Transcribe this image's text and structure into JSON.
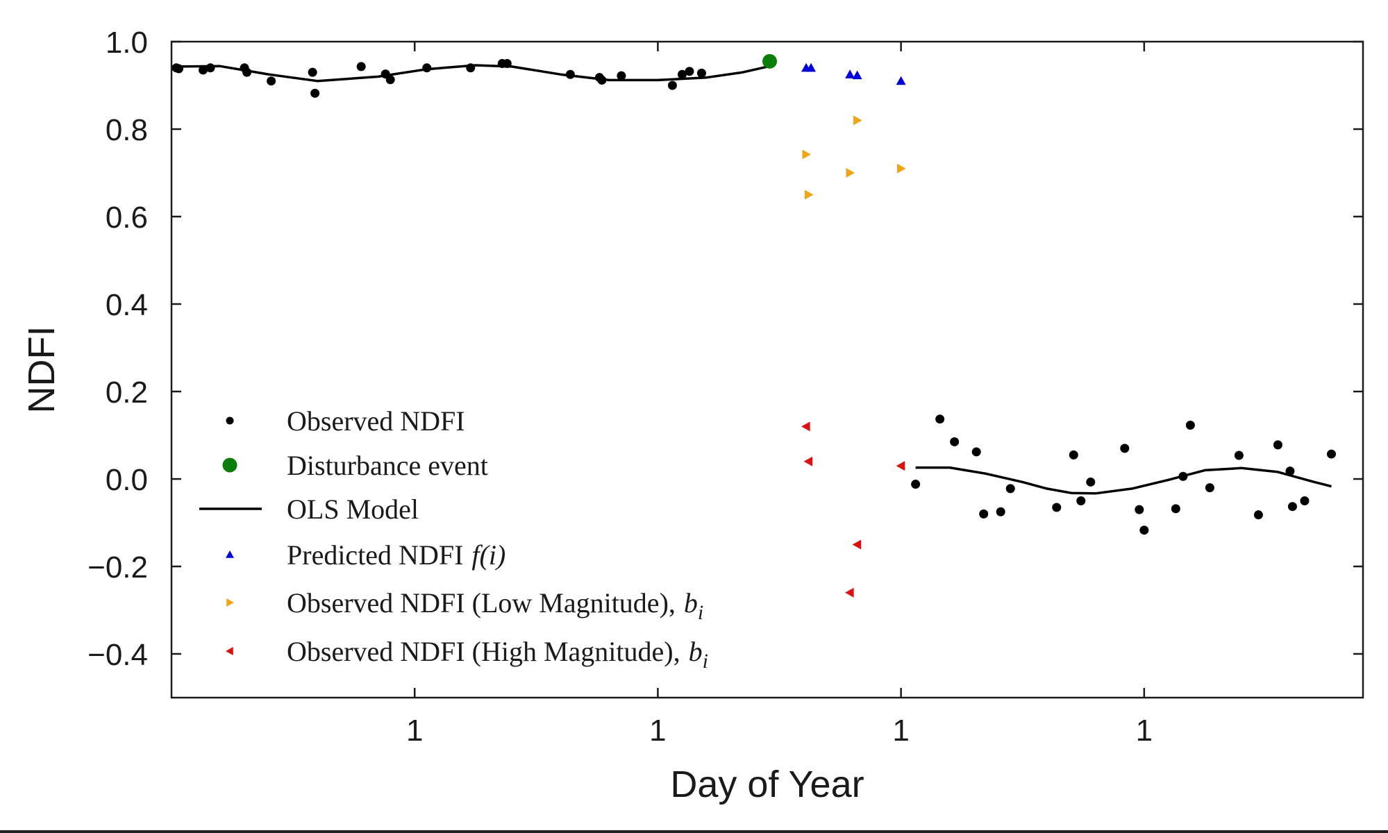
{
  "chart_data": {
    "type": "scatter",
    "xlabel": "Day of Year",
    "ylabel": "NDFI",
    "xlim": [
      0,
      4.9
    ],
    "ylim": [
      -0.5,
      1.0
    ],
    "grid": false,
    "legend_position": "lower-left",
    "x_ticks": [
      {
        "value": 1,
        "label": "1"
      },
      {
        "value": 2,
        "label": "1"
      },
      {
        "value": 3,
        "label": "1"
      },
      {
        "value": 4,
        "label": "1"
      }
    ],
    "y_ticks": [
      {
        "value": 1.0,
        "label": "1.0"
      },
      {
        "value": 0.8,
        "label": "0.8"
      },
      {
        "value": 0.6,
        "label": "0.6"
      },
      {
        "value": 0.4,
        "label": "0.4"
      },
      {
        "value": 0.2,
        "label": "0.2"
      },
      {
        "value": 0.0,
        "label": "0.0"
      },
      {
        "value": -0.2,
        "label": "−0.2"
      },
      {
        "value": -0.4,
        "label": "−0.4"
      }
    ],
    "series": [
      {
        "name": "Observed NDFI",
        "marker": "dot",
        "color": "#000000",
        "points": [
          [
            0.02,
            0.94
          ],
          [
            0.03,
            0.938
          ],
          [
            0.13,
            0.935
          ],
          [
            0.16,
            0.94
          ],
          [
            0.3,
            0.94
          ],
          [
            0.31,
            0.93
          ],
          [
            0.41,
            0.91
          ],
          [
            0.58,
            0.93
          ],
          [
            0.59,
            0.882
          ],
          [
            0.78,
            0.943
          ],
          [
            0.88,
            0.926
          ],
          [
            0.9,
            0.913
          ],
          [
            1.05,
            0.94
          ],
          [
            1.23,
            0.94
          ],
          [
            1.36,
            0.95
          ],
          [
            1.38,
            0.95
          ],
          [
            1.64,
            0.925
          ],
          [
            1.76,
            0.918
          ],
          [
            1.77,
            0.912
          ],
          [
            1.85,
            0.922
          ],
          [
            2.06,
            0.9
          ],
          [
            2.1,
            0.925
          ],
          [
            2.13,
            0.932
          ],
          [
            2.18,
            0.928
          ],
          [
            3.06,
            -0.012
          ],
          [
            3.16,
            0.137
          ],
          [
            3.22,
            0.085
          ],
          [
            3.31,
            0.062
          ],
          [
            3.34,
            -0.08
          ],
          [
            3.41,
            -0.075
          ],
          [
            3.45,
            -0.022
          ],
          [
            3.64,
            -0.065
          ],
          [
            3.71,
            0.055
          ],
          [
            3.74,
            -0.05
          ],
          [
            3.78,
            -0.007
          ],
          [
            3.92,
            0.07
          ],
          [
            3.98,
            -0.07
          ],
          [
            4.0,
            -0.117
          ],
          [
            4.13,
            -0.068
          ],
          [
            4.16,
            0.006
          ],
          [
            4.19,
            0.123
          ],
          [
            4.27,
            -0.02
          ],
          [
            4.39,
            0.054
          ],
          [
            4.47,
            -0.082
          ],
          [
            4.55,
            0.078
          ],
          [
            4.6,
            0.018
          ],
          [
            4.61,
            -0.063
          ],
          [
            4.66,
            -0.05
          ],
          [
            4.77,
            0.057
          ]
        ]
      },
      {
        "name": "Disturbance event",
        "marker": "big-dot",
        "color": "#0b7d0b",
        "points": [
          [
            2.46,
            0.955
          ]
        ]
      },
      {
        "name": "OLS Model",
        "marker": "line",
        "color": "#000000",
        "segments": [
          [
            [
              0.0,
              0.943
            ],
            [
              0.2,
              0.944
            ],
            [
              0.4,
              0.925
            ],
            [
              0.6,
              0.91
            ],
            [
              0.85,
              0.92
            ],
            [
              1.05,
              0.937
            ],
            [
              1.25,
              0.946
            ],
            [
              1.4,
              0.943
            ],
            [
              1.6,
              0.925
            ],
            [
              1.8,
              0.912
            ],
            [
              2.0,
              0.912
            ],
            [
              2.2,
              0.918
            ],
            [
              2.35,
              0.93
            ],
            [
              2.46,
              0.944
            ]
          ],
          [
            [
              3.06,
              0.026
            ],
            [
              3.2,
              0.026
            ],
            [
              3.35,
              0.012
            ],
            [
              3.5,
              -0.007
            ],
            [
              3.6,
              -0.022
            ],
            [
              3.7,
              -0.032
            ],
            [
              3.8,
              -0.033
            ],
            [
              3.95,
              -0.022
            ],
            [
              4.1,
              -0.002
            ],
            [
              4.25,
              0.02
            ],
            [
              4.4,
              0.025
            ],
            [
              4.55,
              0.016
            ],
            [
              4.7,
              -0.007
            ],
            [
              4.77,
              -0.017
            ]
          ]
        ]
      },
      {
        "name": "Predicted NDFI",
        "name_math": "f(i)",
        "marker": "triangle-up",
        "color": "#0000dd",
        "points": [
          [
            2.61,
            0.94
          ],
          [
            2.63,
            0.94
          ],
          [
            2.79,
            0.925
          ],
          [
            2.82,
            0.923
          ],
          [
            3.0,
            0.91
          ]
        ]
      },
      {
        "name": "Observed NDFI (Low Magnitude),",
        "name_math": "b",
        "name_math_sub": "i",
        "marker": "triangle-right",
        "color": "#f0a418",
        "points": [
          [
            2.61,
            0.742
          ],
          [
            2.62,
            0.65
          ],
          [
            2.79,
            0.7
          ],
          [
            2.82,
            0.82
          ],
          [
            3.0,
            0.71
          ]
        ]
      },
      {
        "name": "Observed NDFI (High Magnitude),",
        "name_math": "b",
        "name_math_sub": "i",
        "marker": "triangle-left",
        "color": "#dd1111",
        "points": [
          [
            2.61,
            0.12
          ],
          [
            2.62,
            0.04
          ],
          [
            2.79,
            -0.26
          ],
          [
            2.82,
            -0.15
          ],
          [
            3.0,
            0.03
          ]
        ]
      }
    ]
  }
}
